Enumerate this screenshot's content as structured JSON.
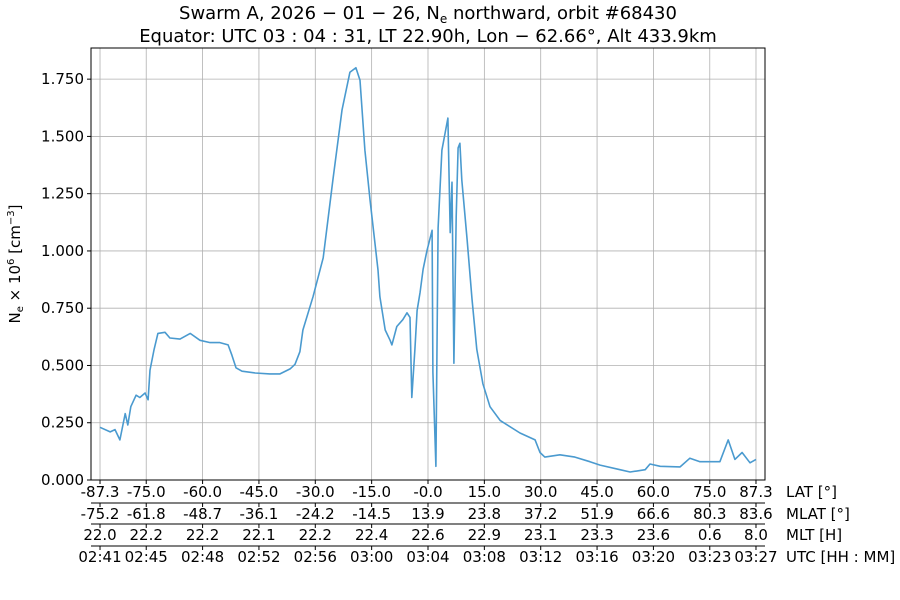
{
  "chart_data": {
    "type": "line",
    "title_line1": {
      "pre": "Swarm A,  2026 − 01 − 26,  N",
      "sub": "e",
      "post": " northward,  orbit #68430"
    },
    "title_line2": "Equator:  UTC 03 : 04 : 31,  LT 22.90h,  Lon  − 62.66°,  Alt 433.9km",
    "ylabel": {
      "pre": "N",
      "sub": "e",
      "mid": " × 10",
      "sup": "6",
      "mid2": " [cm",
      "sup2": "−3",
      "post": "]"
    },
    "xlim": [
      -89.7,
      89.7
    ],
    "ylim": [
      0,
      1.886
    ],
    "grid": true,
    "line_color": "#4a9acf",
    "yticks": [
      "0.000",
      "0.250",
      "0.500",
      "0.750",
      "1.000",
      "1.250",
      "1.500",
      "1.750"
    ],
    "ytick_values": [
      0,
      0.25,
      0.5,
      0.75,
      1.0,
      1.25,
      1.5,
      1.75
    ],
    "xtick_lat": [
      -87.3,
      -75.0,
      -60.0,
      -45.0,
      -30.0,
      -15.0,
      0.0,
      15.0,
      30.0,
      45.0,
      60.0,
      75.0,
      87.3
    ],
    "axis_rows": [
      {
        "label": "LAT [°]",
        "ticks": [
          "-87.3",
          "-75.0",
          "-60.0",
          "-45.0",
          "-30.0",
          "-15.0",
          "-0.0",
          "15.0",
          "30.0",
          "45.0",
          "60.0",
          "75.0",
          "87.3"
        ]
      },
      {
        "label": "MLAT [°]",
        "ticks": [
          "-75.2",
          "-61.8",
          "-48.7",
          "-36.1",
          "-24.2",
          "-14.5",
          "13.9",
          "23.8",
          "37.2",
          "51.9",
          "66.6",
          "80.3",
          "83.6"
        ]
      },
      {
        "label": "MLT [H]",
        "ticks": [
          "22.0",
          "22.2",
          "22.2",
          "22.1",
          "22.2",
          "22.4",
          "22.6",
          "22.9",
          "23.1",
          "23.3",
          "23.6",
          "0.6",
          "8.0"
        ]
      },
      {
        "label": "UTC [HH : MM]",
        "ticks": [
          "02:41",
          "02:45",
          "02:48",
          "02:52",
          "02:56",
          "03:00",
          "03:04",
          "03:08",
          "03:12",
          "03:16",
          "03:20",
          "03:23",
          "03:27"
        ]
      }
    ],
    "series": [
      {
        "x": [
          -87.3,
          -84.6,
          -83.3,
          -82.0,
          -80.6,
          -79.9,
          -79.1,
          -77.7,
          -76.7,
          -75.3,
          -74.5,
          -74.0,
          -72.9,
          -71.9,
          -70.0,
          -68.7,
          -66.0,
          -63.3,
          -60.7,
          -58.0,
          -55.4,
          -53.2,
          -52.2,
          -51.1,
          -49.5,
          -46.0,
          -42.1,
          -39.4,
          -36.7,
          -35.4,
          -34.1,
          -33.3,
          -30.6,
          -27.9,
          -25.3,
          -22.9,
          -20.8,
          -19.2,
          -18.1,
          -16.8,
          -15.4,
          -13.3,
          -12.8,
          -11.4,
          -10.1,
          -9.6,
          -8.3,
          -6.7,
          -5.6,
          -4.8,
          -4.3,
          -3.5,
          -2.9,
          -2.1,
          -1.3,
          -0.3,
          1.1,
          1.3,
          2.1,
          2.7,
          3.7,
          4.5,
          5.3,
          5.9,
          6.4,
          6.9,
          7.5,
          8.0,
          8.5,
          9.0,
          10.4,
          11.7,
          13.0,
          14.6,
          16.5,
          19.2,
          24.5,
          28.5,
          29.8,
          31.1,
          35.1,
          39.1,
          43.1,
          45.8,
          51.1,
          53.8,
          57.8,
          59.1,
          61.8,
          67.1,
          69.7,
          72.4,
          77.7,
          79.9,
          81.7,
          83.6,
          85.7,
          87.3
        ],
        "y": [
          0.23,
          0.21,
          0.22,
          0.175,
          0.29,
          0.24,
          0.32,
          0.37,
          0.36,
          0.38,
          0.35,
          0.48,
          0.57,
          0.64,
          0.645,
          0.62,
          0.615,
          0.64,
          0.61,
          0.6,
          0.6,
          0.59,
          0.545,
          0.49,
          0.475,
          0.467,
          0.463,
          0.463,
          0.485,
          0.505,
          0.56,
          0.655,
          0.8,
          0.97,
          1.31,
          1.615,
          1.78,
          1.8,
          1.745,
          1.44,
          1.22,
          0.917,
          0.8,
          0.655,
          0.61,
          0.59,
          0.67,
          0.7,
          0.73,
          0.71,
          0.36,
          0.57,
          0.74,
          0.82,
          0.92,
          1.0,
          1.09,
          0.47,
          0.06,
          1.1,
          1.44,
          1.51,
          1.58,
          1.08,
          1.3,
          0.51,
          1.15,
          1.45,
          1.47,
          1.31,
          1.05,
          0.79,
          0.57,
          0.42,
          0.32,
          0.26,
          0.205,
          0.175,
          0.12,
          0.1,
          0.11,
          0.1,
          0.08,
          0.065,
          0.045,
          0.035,
          0.045,
          0.07,
          0.06,
          0.057,
          0.095,
          0.08,
          0.08,
          0.175,
          0.09,
          0.12,
          0.075,
          0.09
        ]
      }
    ]
  }
}
